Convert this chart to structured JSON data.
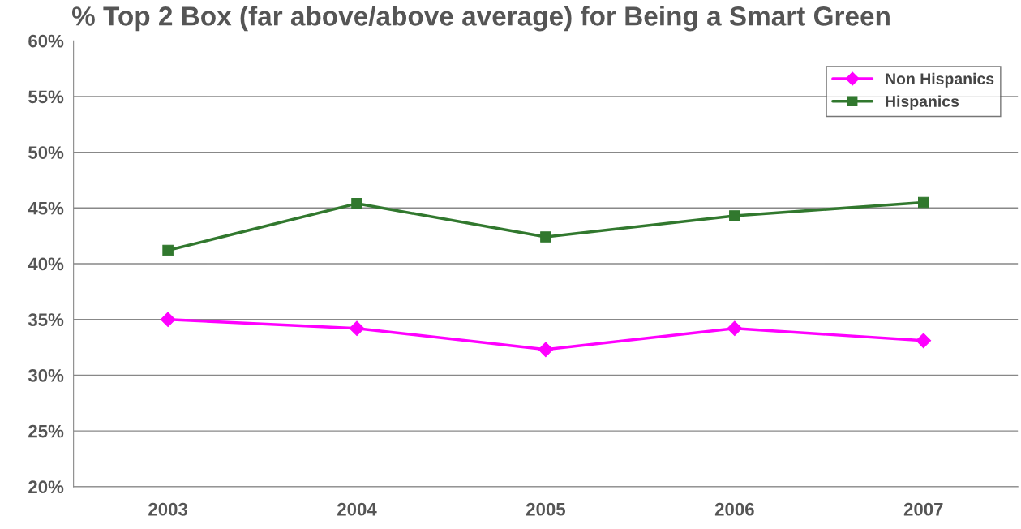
{
  "chart_data": {
    "type": "line",
    "title": "% Top 2 Box (far above/above average) for Being a Smart Green",
    "categories": [
      "2003",
      "2004",
      "2005",
      "2006",
      "2007"
    ],
    "series": [
      {
        "name": "Non Hispanics",
        "color": "#ff00ff",
        "marker": "diamond",
        "values": [
          35.0,
          34.2,
          32.3,
          34.2,
          33.1
        ]
      },
      {
        "name": "Hispanics",
        "color": "#31782e",
        "marker": "square",
        "values": [
          41.2,
          45.4,
          42.4,
          44.3,
          45.5
        ]
      }
    ],
    "ylim": [
      20,
      60
    ],
    "yticks": [
      {
        "value": 20,
        "label": "20%"
      },
      {
        "value": 25,
        "label": "25%"
      },
      {
        "value": 30,
        "label": "30%"
      },
      {
        "value": 35,
        "label": "35%"
      },
      {
        "value": 40,
        "label": "40%"
      },
      {
        "value": 45,
        "label": "45%"
      },
      {
        "value": 50,
        "label": "50%"
      },
      {
        "value": 55,
        "label": "55%"
      },
      {
        "value": 60,
        "label": "60%"
      }
    ],
    "grid": "y",
    "legend": "top right",
    "line_style": "solid"
  }
}
